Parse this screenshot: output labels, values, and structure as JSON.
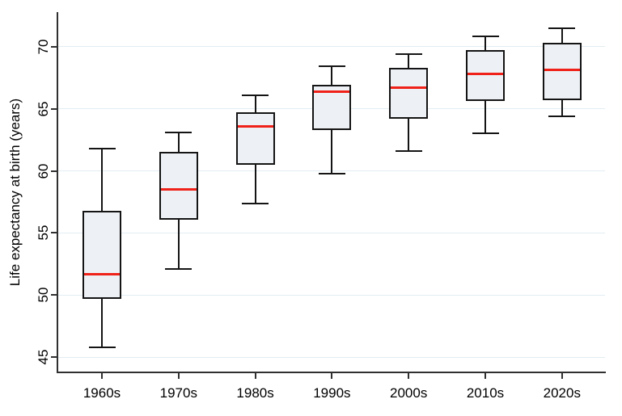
{
  "chart_data": {
    "type": "box",
    "title": "",
    "xlabel": "",
    "ylabel": "Life expectancy at birth (years)",
    "ylim": [
      43.8,
      72.8
    ],
    "yticks": [
      45,
      50,
      55,
      60,
      65,
      70
    ],
    "grid": "horizontal gridlines at each y tick",
    "legend": "none",
    "categories": [
      "1960s",
      "1970s",
      "1980s",
      "1990s",
      "2000s",
      "2010s",
      "2020s"
    ],
    "series": [
      {
        "category": "1960s",
        "whisker_low": 45.8,
        "q1": 49.7,
        "median": 51.7,
        "q3": 56.8,
        "whisker_high": 61.8
      },
      {
        "category": "1970s",
        "whisker_low": 52.1,
        "q1": 56.1,
        "median": 58.5,
        "q3": 61.5,
        "whisker_high": 63.1
      },
      {
        "category": "1980s",
        "whisker_low": 57.4,
        "q1": 60.5,
        "median": 63.6,
        "q3": 64.7,
        "whisker_high": 66.1
      },
      {
        "category": "1990s",
        "whisker_low": 59.8,
        "q1": 63.3,
        "median": 66.4,
        "q3": 66.9,
        "whisker_high": 68.4
      },
      {
        "category": "2000s",
        "whisker_low": 61.6,
        "q1": 64.2,
        "median": 66.7,
        "q3": 68.3,
        "whisker_high": 69.4
      },
      {
        "category": "2010s",
        "whisker_low": 63.0,
        "q1": 65.6,
        "median": 67.8,
        "q3": 69.7,
        "whisker_high": 70.8
      },
      {
        "category": "2020s",
        "whisker_low": 64.4,
        "q1": 65.7,
        "median": 68.1,
        "q3": 70.3,
        "whisker_high": 71.5
      }
    ],
    "colors": {
      "median_line": "#ef2118",
      "box_fill": "#edf1f5",
      "box_border": "#141414",
      "gridline": "#e2edf2",
      "axis": "#303030",
      "text": "#000000",
      "background": "#ffffff"
    }
  }
}
